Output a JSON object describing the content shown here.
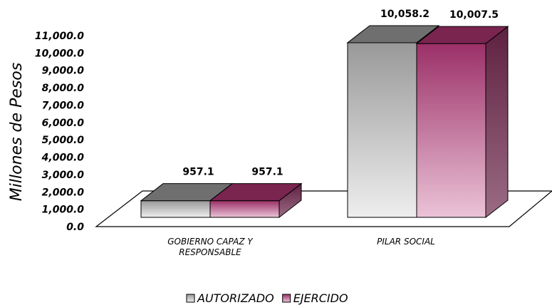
{
  "chart_data": {
    "type": "bar3d",
    "y_label": "Millones de Pesos",
    "categories": [
      "GOBIERNO CAPAZ Y RESPONSABLE",
      "PILAR SOCIAL"
    ],
    "series": [
      {
        "name": "AUTORIZADO",
        "color": "#a0a0a0",
        "values": [
          957.1,
          10058.2
        ],
        "value_labels": [
          "957.1",
          "10,058.2"
        ]
      },
      {
        "name": "EJERCIDO",
        "color": "#9b3068",
        "values": [
          957.1,
          10007.5
        ],
        "value_labels": [
          "957.1",
          "10,007.5"
        ]
      }
    ],
    "ylim": [
      0,
      11000
    ],
    "yticks": [
      {
        "value": 0,
        "label": "0.0"
      },
      {
        "value": 1000,
        "label": "1,000.0"
      },
      {
        "value": 2000,
        "label": "2,000.0"
      },
      {
        "value": 3000,
        "label": "3,000.0"
      },
      {
        "value": 4000,
        "label": "4,000.0"
      },
      {
        "value": 5000,
        "label": "5,000.0"
      },
      {
        "value": 6000,
        "label": "6,000.0"
      },
      {
        "value": 7000,
        "label": "7,000.0"
      },
      {
        "value": 8000,
        "label": "8,000.0"
      },
      {
        "value": 9000,
        "label": "9,000.0"
      },
      {
        "value": 10000,
        "label": "10,000.0"
      },
      {
        "value": 11000,
        "label": "11,000.0"
      }
    ]
  }
}
